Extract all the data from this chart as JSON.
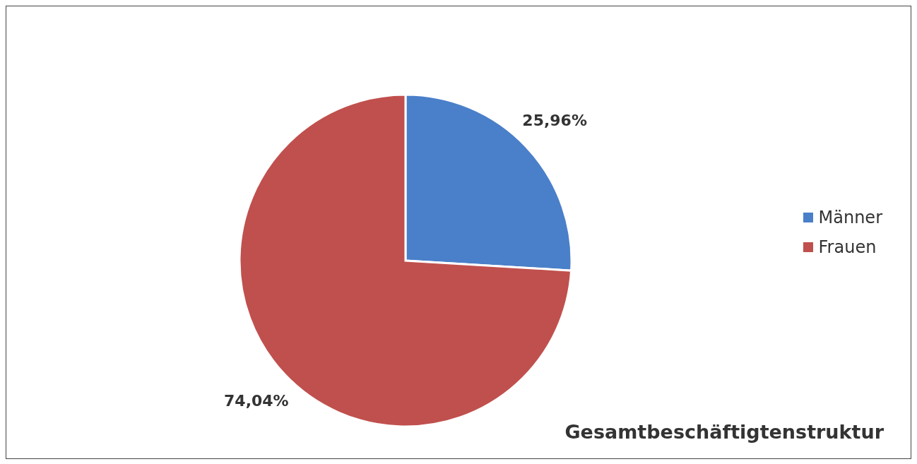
{
  "chart_data": {
    "type": "pie",
    "title": "Gesamtbeschäftigtenstruktur",
    "categories": [
      "Männer",
      "Frauen"
    ],
    "values": [
      25.96,
      74.04
    ],
    "colors": [
      "#4a7fc9",
      "#c0504d"
    ],
    "value_labels": [
      "25,96%",
      "74,04%"
    ],
    "legend": "right"
  }
}
